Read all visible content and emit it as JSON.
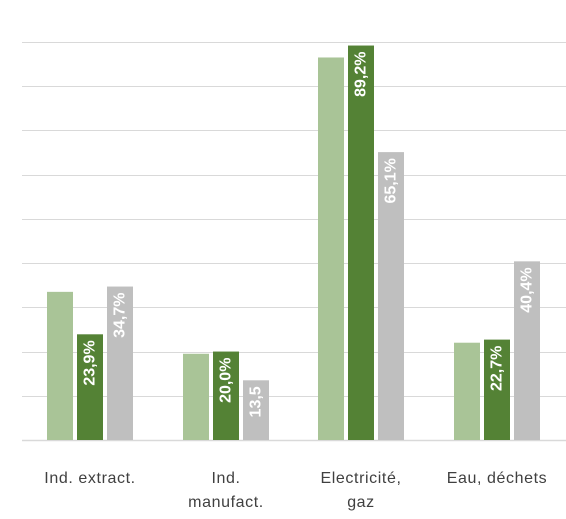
{
  "chart_data": {
    "type": "bar",
    "categories": [
      "Ind. extract.",
      "Ind. manufact.",
      "Electricité, gaz",
      "Eau, déchets"
    ],
    "category_label_lines": [
      [
        "Ind. extract."
      ],
      [
        "Ind.",
        "manufact."
      ],
      [
        "Electricité,",
        "gaz"
      ],
      [
        "Eau, déchets"
      ]
    ],
    "series": [
      {
        "color": "#a9c497",
        "values": [
          33.5,
          19.5,
          86.5,
          22.0
        ],
        "labels": [
          "",
          "",
          "",
          ""
        ]
      },
      {
        "color": "#548235",
        "values": [
          23.9,
          20.0,
          89.2,
          22.7
        ],
        "labels": [
          "23,9%",
          "20,0%",
          "89,2%",
          "22,7%"
        ]
      },
      {
        "color": "#bfbfbf",
        "values": [
          34.7,
          13.5,
          65.1,
          40.4
        ],
        "labels": [
          "34,7%",
          "13,5",
          "65,1%",
          "40,4%"
        ]
      }
    ],
    "ylim": [
      0,
      90
    ],
    "grid": true,
    "legend": "none"
  }
}
